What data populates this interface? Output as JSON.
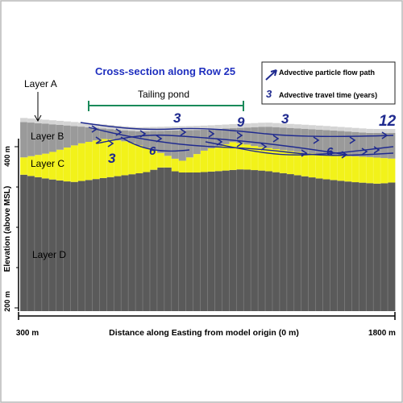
{
  "title": "Cross-section along Row 25",
  "legend": {
    "flow_path_label": "Advective particle flow path",
    "travel_time_symbol": "3",
    "travel_time_label": "Advective travel time (years)"
  },
  "layers": {
    "a": "Layer A",
    "b": "Layer B",
    "c": "Layer C",
    "d": "Layer D"
  },
  "tailing_pond_label": "Tailing pond",
  "y_axis": {
    "label": "Elevation (above MSL)",
    "tick_top": "400 m",
    "tick_bottom": "200 m"
  },
  "x_axis": {
    "label": "Distance along Easting from model origin (0 m)",
    "tick_left": "300 m",
    "tick_right": "1800 m"
  },
  "travel_time_markers": [
    "3",
    "6",
    "3",
    "9",
    "3",
    "6",
    "12"
  ],
  "colors": {
    "title": "#1f2fbf",
    "arrow": "#1f2a8f",
    "layer_a": "#d4d4d4",
    "layer_b": "#9a9a9a",
    "layer_c": "#f2f21a",
    "layer_d": "#5a5a5a",
    "pond_bracket": "#1a8a5a",
    "outer_border": "#b8b8b8"
  }
}
